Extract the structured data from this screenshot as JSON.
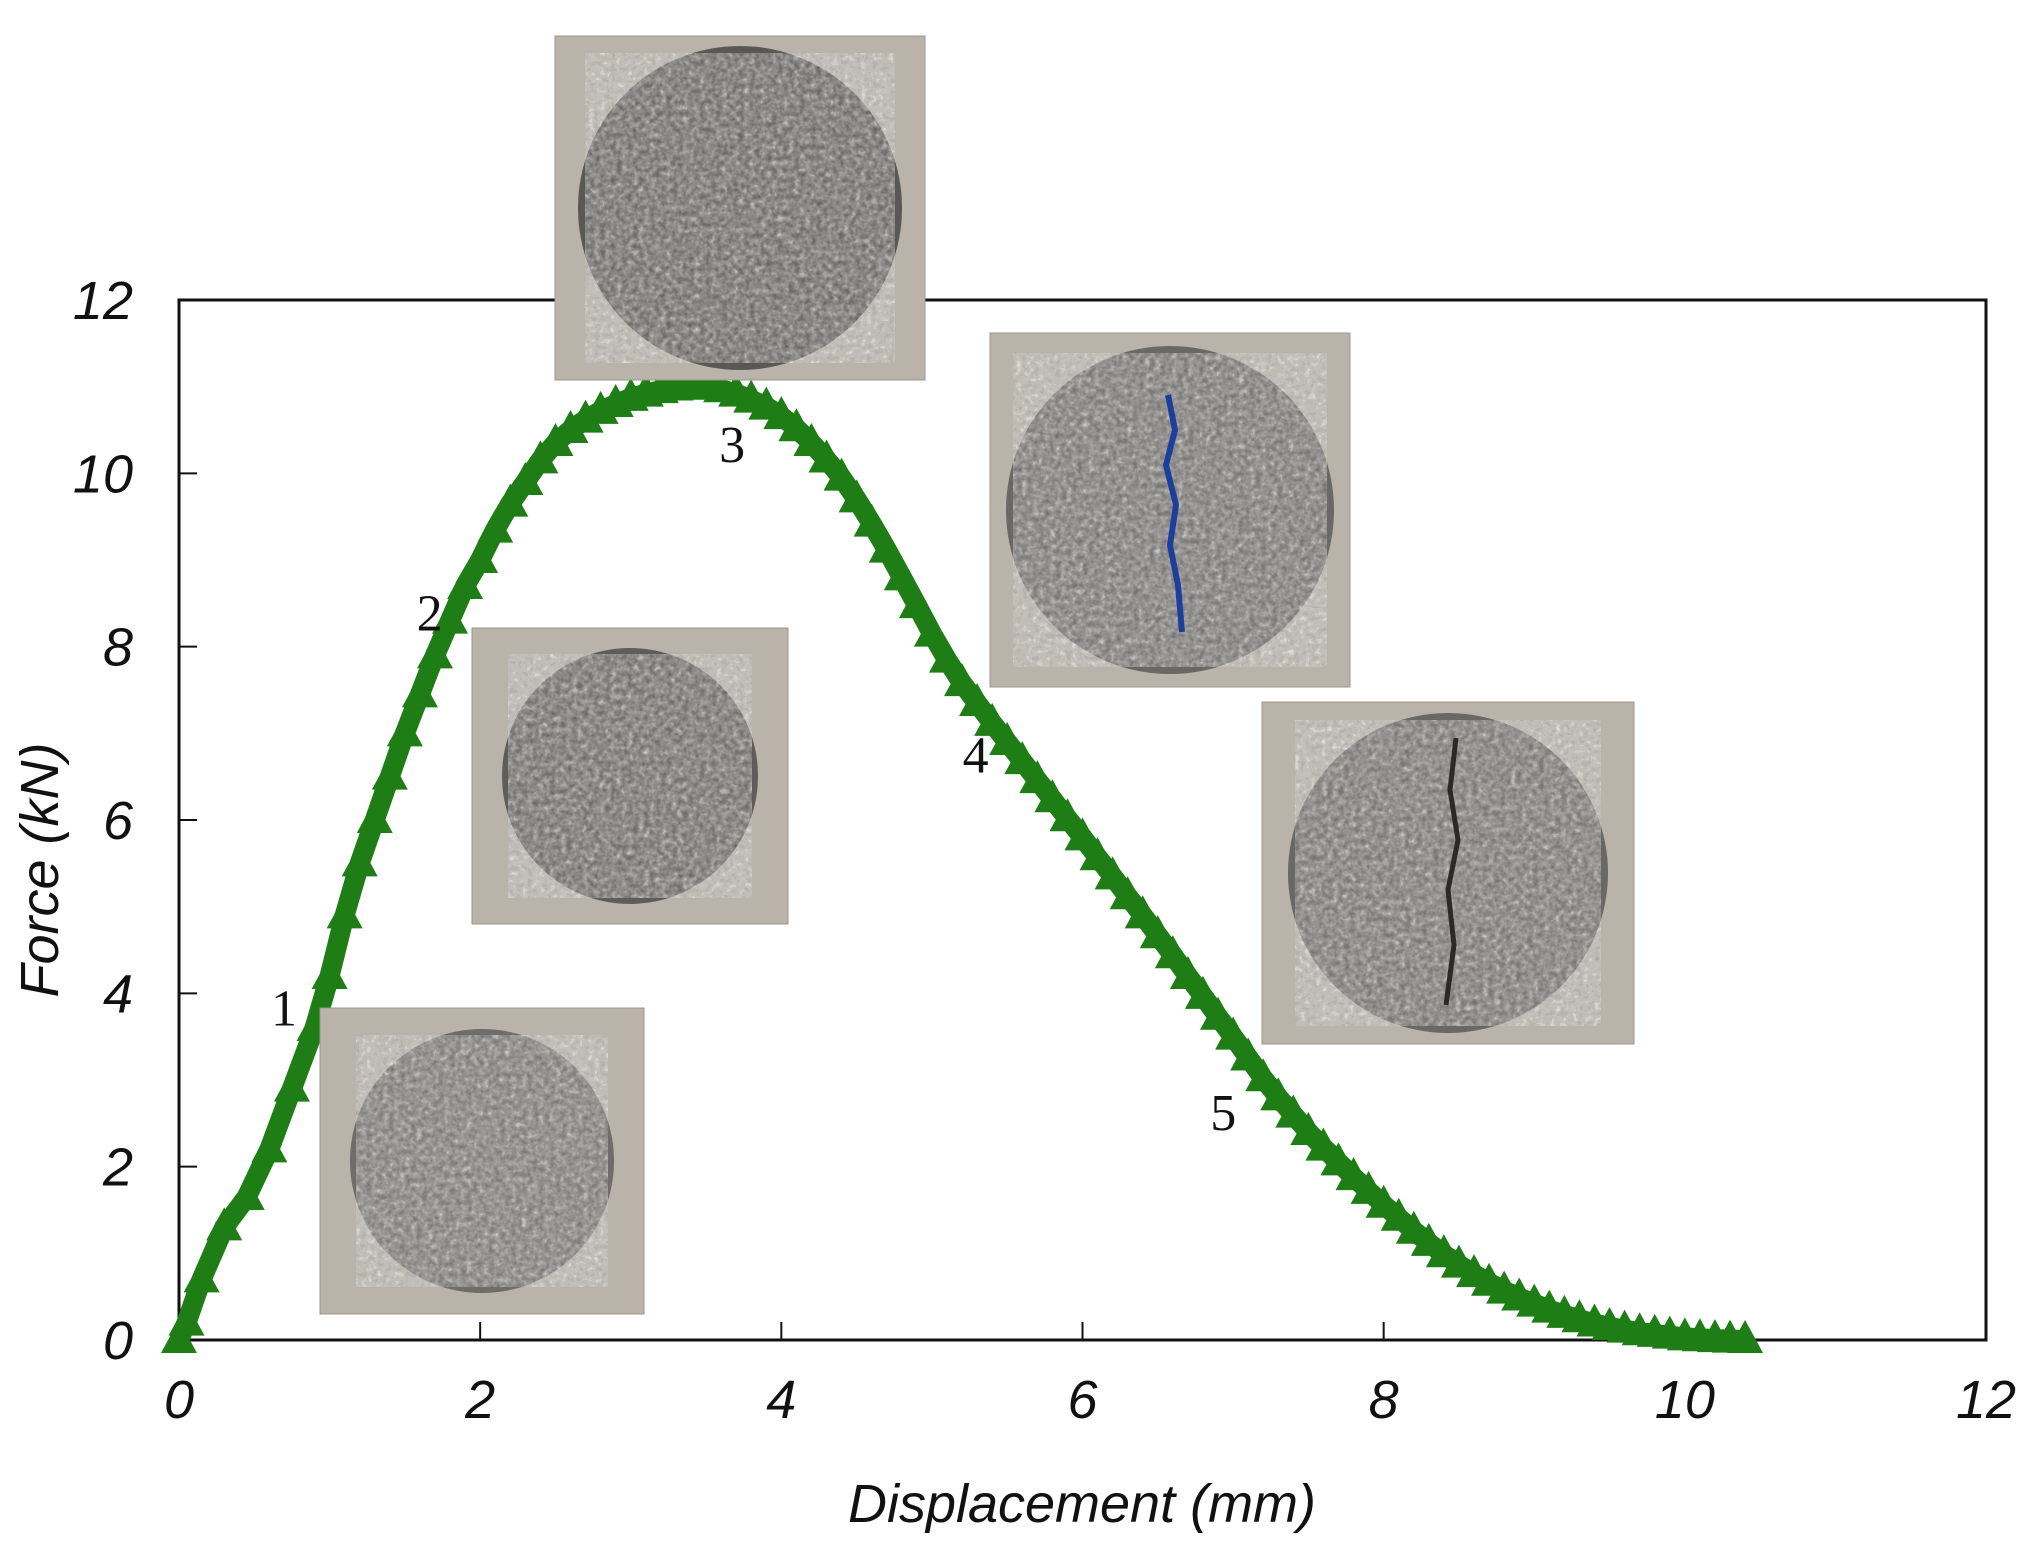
{
  "chart_data": {
    "type": "scatter",
    "xlabel": "Displacement (mm)",
    "ylabel": "Force (kN)",
    "xlim": [
      0,
      12
    ],
    "ylim": [
      0,
      12
    ],
    "xticks": [
      0,
      2,
      4,
      6,
      8,
      10,
      12
    ],
    "yticks": [
      0,
      2,
      4,
      6,
      8,
      10,
      12
    ],
    "grid": false,
    "marker": "triangle",
    "colors": {
      "series": "#1e7d14",
      "frame": "#111111",
      "specimen_bg": "#b9b3aa",
      "specimen_disc": "#6f6d69"
    },
    "series": [
      {
        "x": [
          0,
          0.05,
          0.15,
          0.3,
          0.45,
          0.6,
          0.75,
          0.9,
          1.0,
          1.1,
          1.2,
          1.3,
          1.4,
          1.5,
          1.6,
          1.7,
          1.8,
          1.9,
          2.0,
          2.1,
          2.2,
          2.3,
          2.4,
          2.5,
          2.6,
          2.7,
          2.8,
          2.9,
          3.0,
          3.1,
          3.2,
          3.3,
          3.4,
          3.5,
          3.6,
          3.7,
          3.8,
          3.9,
          4.0,
          4.1,
          4.2,
          4.3,
          4.4,
          4.5,
          4.6,
          4.7,
          4.8,
          4.9,
          5.0,
          5.1,
          5.2,
          5.3,
          5.4,
          5.5,
          5.6,
          5.7,
          5.8,
          5.9,
          6.0,
          6.1,
          6.2,
          6.3,
          6.4,
          6.5,
          6.6,
          6.7,
          6.8,
          6.9,
          7.0,
          7.1,
          7.2,
          7.3,
          7.4,
          7.5,
          7.6,
          7.7,
          7.8,
          7.9,
          8.0,
          8.1,
          8.2,
          8.3,
          8.4,
          8.5,
          8.6,
          8.7,
          8.8,
          8.9,
          9.0,
          9.1,
          9.2,
          9.3,
          9.4,
          9.5,
          9.6,
          9.7,
          9.8,
          9.9,
          10.0,
          10.1,
          10.2,
          10.3,
          10.4
        ],
        "y": [
          0,
          0.2,
          0.7,
          1.3,
          1.65,
          2.2,
          2.9,
          3.6,
          4.2,
          4.9,
          5.5,
          6.0,
          6.5,
          7.0,
          7.45,
          7.9,
          8.3,
          8.7,
          9.0,
          9.35,
          9.65,
          9.9,
          10.15,
          10.35,
          10.5,
          10.62,
          10.72,
          10.8,
          10.87,
          10.92,
          10.96,
          10.99,
          11.0,
          11.0,
          10.97,
          10.92,
          10.85,
          10.77,
          10.66,
          10.52,
          10.35,
          10.16,
          9.95,
          9.7,
          9.42,
          9.12,
          8.8,
          8.48,
          8.15,
          7.85,
          7.58,
          7.35,
          7.12,
          6.9,
          6.68,
          6.46,
          6.24,
          6.02,
          5.8,
          5.57,
          5.35,
          5.12,
          4.9,
          4.67,
          4.44,
          4.2,
          3.97,
          3.73,
          3.5,
          3.26,
          3.02,
          2.8,
          2.6,
          2.4,
          2.22,
          2.05,
          1.88,
          1.72,
          1.56,
          1.41,
          1.26,
          1.12,
          0.99,
          0.87,
          0.76,
          0.66,
          0.57,
          0.49,
          0.42,
          0.35,
          0.29,
          0.24,
          0.19,
          0.15,
          0.12,
          0.09,
          0.07,
          0.05,
          0.03,
          0.02,
          0.01,
          0.005,
          0.0
        ]
      }
    ],
    "annotations": [
      {
        "label": "1",
        "x": 0.95,
        "y": 3.95
      },
      {
        "label": "2",
        "x": 1.93,
        "y": 8.3
      },
      {
        "label": "3",
        "x": 3.62,
        "y": 10.8
      },
      {
        "label": "4",
        "x": 5.45,
        "y": 7.1
      },
      {
        "label": "5",
        "x": 7.2,
        "y": 3.0
      }
    ]
  }
}
